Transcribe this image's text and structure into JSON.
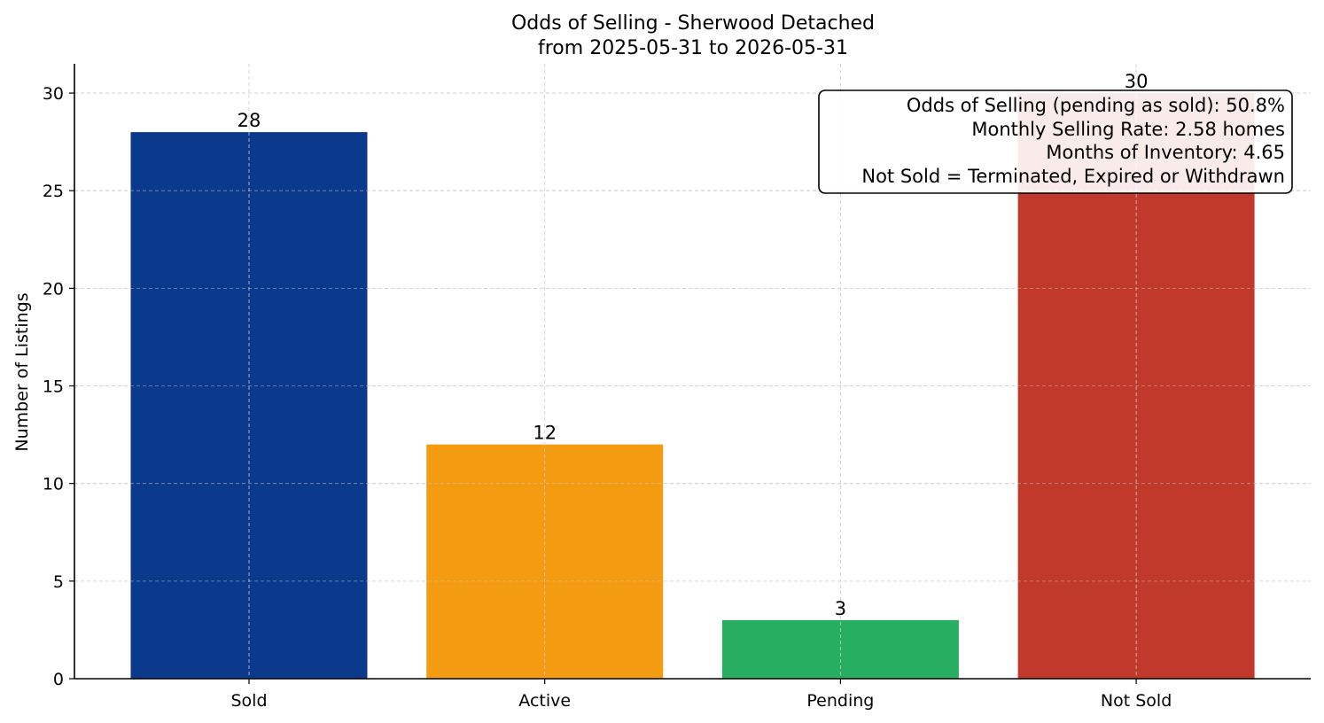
{
  "chart_data": {
    "type": "bar",
    "title": "Odds of Selling - Sherwood Detached",
    "subtitle": "from 2025-05-31 to 2026-05-31",
    "xlabel": "",
    "ylabel": "Number of Listings",
    "categories": [
      "Sold",
      "Active",
      "Pending",
      "Not Sold"
    ],
    "values": [
      28,
      12,
      3,
      30
    ],
    "data_labels": [
      "28",
      "12",
      "3",
      "30"
    ],
    "colors": [
      "#0b3a8c",
      "#f39c12",
      "#27ae60",
      "#c0392b"
    ],
    "ylim": [
      0,
      31.5
    ],
    "yticks": [
      0,
      5,
      10,
      15,
      20,
      25,
      30
    ],
    "ytick_labels": [
      "0",
      "5",
      "10",
      "15",
      "20",
      "25",
      "30"
    ],
    "grid": true,
    "annotation_box": {
      "lines": [
        "Odds of Selling (pending as sold): 50.8%",
        "Monthly Selling Rate: 2.58 homes",
        "Months of Inventory: 4.65",
        "Not Sold = Terminated, Expired or Withdrawn"
      ],
      "placement": "top-right"
    }
  }
}
